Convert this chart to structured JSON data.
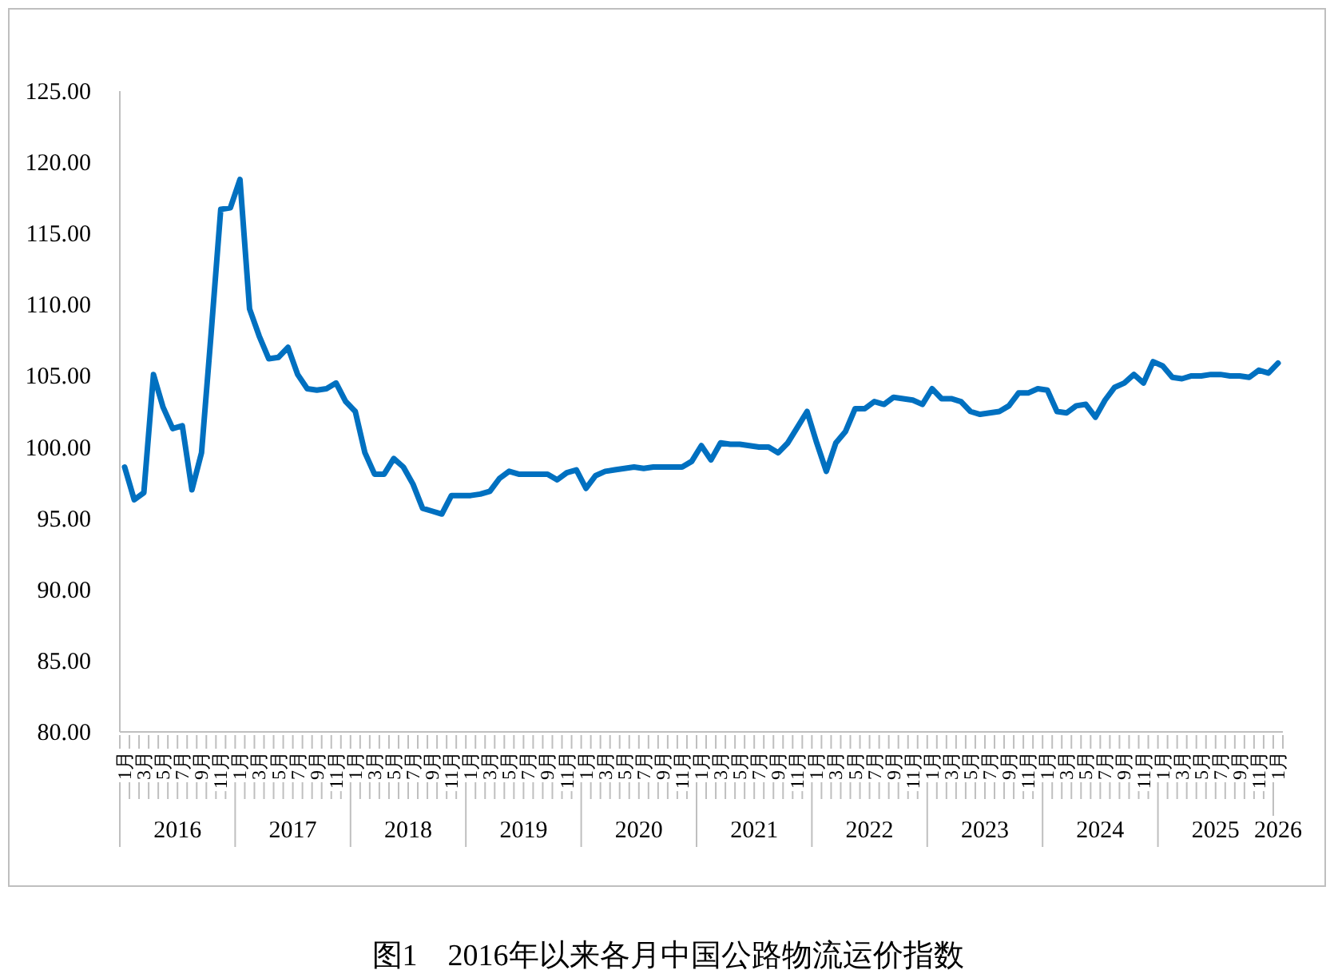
{
  "chart_data": {
    "type": "line",
    "title": "图1　2016年以来各月中国公路物流运价指数",
    "categories": [
      "1月",
      null,
      "3月",
      null,
      "5月",
      null,
      "7月",
      null,
      "9月",
      null,
      "11月",
      null,
      "1月",
      null,
      "3月",
      null,
      "5月",
      null,
      "7月",
      null,
      "9月",
      null,
      "11月",
      null,
      "1月",
      null,
      "3月",
      null,
      "5月",
      null,
      "7月",
      null,
      "9月",
      null,
      "11月",
      null,
      "1月",
      null,
      "3月",
      null,
      "5月",
      null,
      "7月",
      null,
      "9月",
      null,
      "11月",
      null,
      "1月",
      null,
      "3月",
      null,
      "5月",
      null,
      "7月",
      null,
      "9月",
      null,
      "11月",
      null,
      "1月",
      null,
      "3月",
      null,
      "5月",
      null,
      "7月",
      null,
      "9月",
      null,
      "11月",
      null,
      "1月",
      null,
      "3月",
      null,
      "5月",
      null,
      "7月",
      null,
      "9月",
      null,
      "11月",
      null,
      "1月",
      null,
      "3月",
      null,
      "5月",
      null,
      "7月",
      null,
      "9月",
      null,
      "11月",
      null,
      "1月",
      null,
      "3月",
      null,
      "5月",
      null,
      "7月",
      null,
      "9月",
      null,
      "11月",
      null,
      "1月",
      null,
      "3月",
      null,
      "5月",
      null,
      "7月",
      null,
      "9月",
      null,
      "11月",
      null,
      "1月"
    ],
    "series": [
      {
        "color": "#0070c0",
        "values": [
          98.6,
          96.3,
          96.8,
          105.1,
          102.8,
          101.3,
          101.5,
          97.0,
          99.6,
          108.0,
          116.7,
          116.8,
          118.8,
          109.7,
          107.8,
          106.2,
          106.3,
          107.0,
          105.1,
          104.1,
          104.0,
          104.1,
          104.5,
          103.2,
          102.5,
          99.6,
          98.1,
          98.1,
          99.2,
          98.6,
          97.4,
          95.7,
          95.5,
          95.3,
          96.6,
          96.6,
          96.6,
          96.7,
          96.9,
          97.8,
          98.3,
          98.1,
          98.1,
          98.1,
          98.1,
          97.7,
          98.2,
          98.4,
          97.1,
          98.0,
          98.3,
          98.4,
          98.5,
          98.6,
          98.5,
          98.6,
          98.6,
          98.6,
          98.6,
          99.0,
          100.1,
          99.1,
          100.3,
          100.2,
          100.2,
          100.1,
          100.0,
          100.0,
          99.6,
          100.3,
          101.4,
          102.5,
          100.3,
          98.3,
          100.3,
          101.1,
          102.7,
          102.7,
          103.2,
          103.0,
          103.5,
          103.4,
          103.3,
          103.0,
          104.1,
          103.4,
          103.4,
          103.2,
          102.5,
          102.3,
          102.4,
          102.5,
          102.9,
          103.8,
          103.8,
          104.1,
          104.0,
          102.5,
          102.4,
          102.9,
          103.0,
          102.1,
          103.3,
          104.2,
          104.5,
          105.1,
          104.5,
          106.0,
          105.7,
          104.9,
          104.8,
          105.0,
          105.0,
          105.1,
          105.1,
          105.0,
          105.0,
          104.9,
          105.4,
          105.2,
          105.9
        ]
      }
    ],
    "ylim": [
      80,
      125
    ],
    "yticks": [
      {
        "value": 80,
        "label": "80.00"
      },
      {
        "value": 85,
        "label": "85.00"
      },
      {
        "value": 90,
        "label": "90.00"
      },
      {
        "value": 95,
        "label": "95.00"
      },
      {
        "value": 100,
        "label": "100.00"
      },
      {
        "value": 105,
        "label": "105.00"
      },
      {
        "value": 110,
        "label": "110.00"
      },
      {
        "value": 115,
        "label": "115.00"
      },
      {
        "value": 120,
        "label": "120.00"
      },
      {
        "value": 125,
        "label": "125.00"
      }
    ],
    "annotations": [
      "2016",
      "2017",
      "2018",
      "2019",
      "2020",
      "2021",
      "2022",
      "2023",
      "2024",
      "2025",
      "2026"
    ]
  }
}
